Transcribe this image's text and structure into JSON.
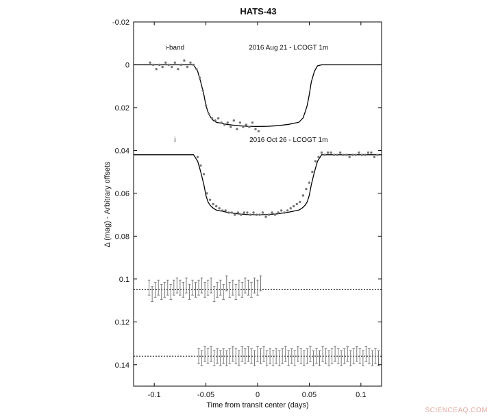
{
  "chart_data": {
    "type": "scatter",
    "title": "HATS-43",
    "xlabel": "Time from transit center (days)",
    "ylabel": "Δ (mag) - Arbitrary offsets",
    "xlim": [
      -0.12,
      0.12
    ],
    "ylim": [
      0.15,
      -0.02
    ],
    "y_inverted": true,
    "grid": false,
    "x_ticks": [
      {
        "value": -0.1,
        "label": "-0.1"
      },
      {
        "value": -0.05,
        "label": "-0.05"
      },
      {
        "value": 0,
        "label": "0"
      },
      {
        "value": 0.05,
        "label": "0.05"
      },
      {
        "value": 0.1,
        "label": "0.1"
      }
    ],
    "y_ticks": [
      {
        "value": -0.02,
        "label": "-0.02"
      },
      {
        "value": 0,
        "label": "0"
      },
      {
        "value": 0.02,
        "label": "0.02"
      },
      {
        "value": 0.04,
        "label": "0.04"
      },
      {
        "value": 0.06,
        "label": "0.06"
      },
      {
        "value": 0.08,
        "label": "0.08"
      },
      {
        "value": 0.1,
        "label": "0.1"
      },
      {
        "value": 0.12,
        "label": "0.12"
      },
      {
        "value": 0.14,
        "label": "0.14"
      }
    ],
    "annotations": [
      {
        "text": "i-band",
        "x": -0.08,
        "y": -0.007
      },
      {
        "text": "2016 Aug 21 - LCOGT 1m",
        "x": 0.03,
        "y": -0.007
      },
      {
        "text": "i",
        "x": -0.08,
        "y": 0.036
      },
      {
        "text": "2016 Oct 26 - LCOGT 1m",
        "x": 0.03,
        "y": 0.036
      }
    ],
    "model_curves": [
      {
        "x": [
          -0.12,
          -0.062,
          -0.058,
          -0.055,
          -0.052,
          -0.05,
          -0.048,
          -0.046,
          -0.044,
          -0.042,
          -0.04,
          -0.03,
          -0.02,
          -0.01,
          0.0,
          0.01,
          0.02,
          0.03,
          0.04,
          0.044,
          0.046,
          0.048,
          0.05,
          0.052,
          0.055,
          0.058,
          0.062,
          0.12
        ],
        "y": [
          0.0,
          0.0,
          0.003,
          0.008,
          0.014,
          0.019,
          0.022,
          0.024,
          0.0255,
          0.0262,
          0.0268,
          0.0278,
          0.0284,
          0.0287,
          0.0288,
          0.0287,
          0.0284,
          0.0278,
          0.0268,
          0.0248,
          0.022,
          0.019,
          0.014,
          0.008,
          0.003,
          0.0005,
          0.0,
          0.0
        ]
      },
      {
        "x": [
          -0.12,
          -0.062,
          -0.058,
          -0.055,
          -0.052,
          -0.05,
          -0.048,
          -0.046,
          -0.044,
          -0.042,
          -0.04,
          -0.03,
          -0.02,
          -0.01,
          0.0,
          0.01,
          0.02,
          0.03,
          0.04,
          0.042,
          0.044,
          0.046,
          0.048,
          0.05,
          0.052,
          0.055,
          0.058,
          0.062,
          0.12
        ],
        "y": [
          0.042,
          0.042,
          0.045,
          0.05,
          0.056,
          0.061,
          0.064,
          0.0655,
          0.0665,
          0.0672,
          0.0678,
          0.0688,
          0.0695,
          0.0699,
          0.07,
          0.0699,
          0.0695,
          0.0688,
          0.0678,
          0.0672,
          0.0665,
          0.0655,
          0.064,
          0.061,
          0.056,
          0.05,
          0.045,
          0.042,
          0.042
        ]
      }
    ],
    "series": [
      {
        "x": [
          -0.104,
          -0.101,
          -0.098,
          -0.095,
          -0.092,
          -0.089,
          -0.086,
          -0.083,
          -0.08,
          -0.077,
          -0.074,
          -0.071,
          -0.068,
          -0.065,
          -0.062,
          -0.059,
          -0.056,
          -0.053,
          -0.05,
          -0.047,
          -0.044,
          -0.041,
          -0.038,
          -0.035,
          -0.032,
          -0.029,
          -0.026,
          -0.023,
          -0.02,
          -0.017,
          -0.014,
          -0.011,
          -0.008,
          -0.005,
          -0.002,
          0.001
        ],
        "y": [
          -0.001,
          0.0,
          0.002,
          0.0,
          0.001,
          -0.001,
          0.0,
          0.001,
          -0.001,
          0.002,
          0.0,
          -0.002,
          0.001,
          -0.001,
          0.0,
          0.002,
          0.006,
          0.012,
          0.019,
          0.023,
          0.025,
          0.026,
          0.025,
          0.027,
          0.028,
          0.027,
          0.029,
          0.026,
          0.03,
          0.027,
          0.029,
          0.028,
          0.029,
          0.027,
          0.03,
          0.031
        ]
      },
      {
        "x": [
          -0.058,
          -0.055,
          -0.052,
          -0.049,
          -0.046,
          -0.043,
          -0.04,
          -0.037,
          -0.034,
          -0.031,
          -0.028,
          -0.025,
          -0.022,
          -0.019,
          -0.016,
          -0.013,
          -0.01,
          -0.007,
          -0.004,
          -0.001,
          0.002,
          0.005,
          0.008,
          0.011,
          0.014,
          0.017,
          0.02,
          0.023,
          0.026,
          0.029,
          0.032,
          0.035,
          0.038,
          0.041,
          0.044,
          0.047,
          0.05,
          0.053,
          0.056,
          0.059,
          0.062,
          0.065,
          0.068,
          0.071,
          0.074,
          0.077,
          0.08,
          0.083,
          0.086,
          0.089,
          0.092,
          0.095,
          0.098,
          0.101,
          0.104,
          0.107,
          0.11,
          0.113,
          0.116
        ],
        "y": [
          0.043,
          0.047,
          0.051,
          0.06,
          0.063,
          0.065,
          0.066,
          0.067,
          0.068,
          0.068,
          0.069,
          0.069,
          0.07,
          0.069,
          0.07,
          0.069,
          0.069,
          0.07,
          0.069,
          0.07,
          0.07,
          0.069,
          0.071,
          0.07,
          0.069,
          0.07,
          0.069,
          0.068,
          0.069,
          0.068,
          0.067,
          0.066,
          0.065,
          0.064,
          0.061,
          0.058,
          0.055,
          0.05,
          0.045,
          0.043,
          0.041,
          0.042,
          0.041,
          0.041,
          0.042,
          0.042,
          0.041,
          0.042,
          0.042,
          0.043,
          0.042,
          0.042,
          0.041,
          0.042,
          0.042,
          0.041,
          0.041,
          0.043,
          0.042
        ]
      }
    ],
    "residuals": [
      {
        "baseline": 0.105,
        "errbar": 0.0035,
        "x": [
          -0.105,
          -0.102,
          -0.099,
          -0.096,
          -0.093,
          -0.09,
          -0.087,
          -0.084,
          -0.081,
          -0.078,
          -0.075,
          -0.072,
          -0.069,
          -0.066,
          -0.063,
          -0.06,
          -0.057,
          -0.054,
          -0.051,
          -0.048,
          -0.045,
          -0.042,
          -0.039,
          -0.036,
          -0.033,
          -0.03,
          -0.027,
          -0.024,
          -0.021,
          -0.018,
          -0.015,
          -0.012,
          -0.009,
          -0.006,
          -0.003,
          0.0,
          0.003
        ],
        "y": [
          0.104,
          0.107,
          0.105,
          0.104,
          0.106,
          0.105,
          0.104,
          0.106,
          0.104,
          0.103,
          0.104,
          0.105,
          0.103,
          0.106,
          0.104,
          0.105,
          0.104,
          0.103,
          0.105,
          0.104,
          0.103,
          0.107,
          0.105,
          0.104,
          0.106,
          0.102,
          0.105,
          0.104,
          0.106,
          0.104,
          0.105,
          0.103,
          0.104,
          0.105,
          0.103,
          0.104,
          0.102
        ]
      },
      {
        "baseline": 0.136,
        "errbar": 0.0035,
        "x": [
          -0.057,
          -0.054,
          -0.051,
          -0.048,
          -0.045,
          -0.042,
          -0.039,
          -0.036,
          -0.033,
          -0.03,
          -0.027,
          -0.024,
          -0.021,
          -0.018,
          -0.015,
          -0.012,
          -0.009,
          -0.006,
          -0.003,
          0.0,
          0.003,
          0.006,
          0.009,
          0.012,
          0.015,
          0.018,
          0.021,
          0.024,
          0.027,
          0.03,
          0.033,
          0.036,
          0.039,
          0.042,
          0.045,
          0.048,
          0.051,
          0.054,
          0.057,
          0.06,
          0.063,
          0.066,
          0.069,
          0.072,
          0.075,
          0.078,
          0.081,
          0.084,
          0.087,
          0.09,
          0.093,
          0.096,
          0.099,
          0.102,
          0.105,
          0.108,
          0.111,
          0.114,
          0.117
        ],
        "y": [
          0.136,
          0.137,
          0.135,
          0.136,
          0.135,
          0.137,
          0.136,
          0.137,
          0.136,
          0.137,
          0.136,
          0.135,
          0.136,
          0.137,
          0.135,
          0.136,
          0.135,
          0.136,
          0.137,
          0.135,
          0.136,
          0.135,
          0.137,
          0.136,
          0.137,
          0.136,
          0.137,
          0.136,
          0.135,
          0.137,
          0.136,
          0.137,
          0.135,
          0.136,
          0.137,
          0.136,
          0.135,
          0.137,
          0.136,
          0.137,
          0.135,
          0.136,
          0.137,
          0.136,
          0.135,
          0.136,
          0.137,
          0.136,
          0.135,
          0.137,
          0.136,
          0.135,
          0.136,
          0.137,
          0.135,
          0.136,
          0.137,
          0.136,
          0.137
        ]
      }
    ],
    "colors": {
      "points": "#777777",
      "model": "#000000",
      "errbars": "#777777",
      "baseline": "#000000"
    }
  },
  "watermark": "SCIENCEAQ.COM"
}
